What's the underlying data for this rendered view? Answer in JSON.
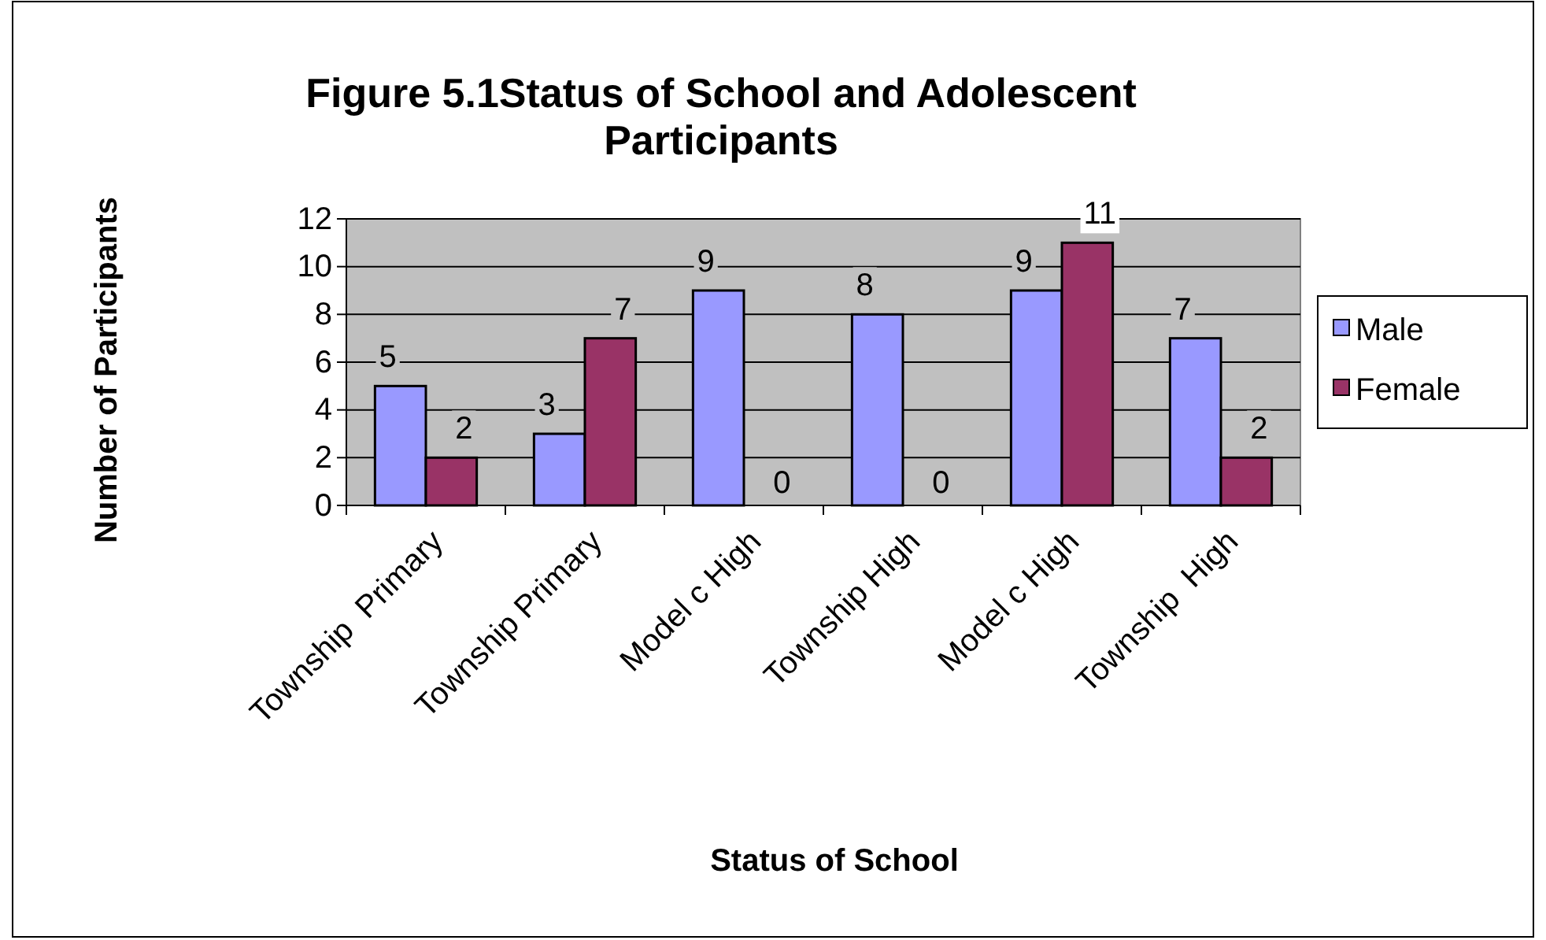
{
  "chart_data": {
    "type": "bar",
    "title": "Figure 5.1Status of School and Adolescent Participants",
    "xlabel": "Status of School",
    "ylabel": "Number of Participants",
    "categories": [
      "Township  Primary",
      "Township Primary",
      "Model c High",
      "Township High",
      "Model c High",
      "Township  High"
    ],
    "series": [
      {
        "name": "Male",
        "color": "#9999ff",
        "values": [
          5,
          3,
          9,
          8,
          9,
          7
        ]
      },
      {
        "name": "Female",
        "color": "#993366",
        "values": [
          2,
          7,
          0,
          0,
          11,
          2
        ]
      }
    ],
    "ylim": [
      0,
      12
    ],
    "yticks": [
      0,
      2,
      4,
      6,
      8,
      10,
      12
    ],
    "grid": "y",
    "legend": "right",
    "data_labels": true
  }
}
